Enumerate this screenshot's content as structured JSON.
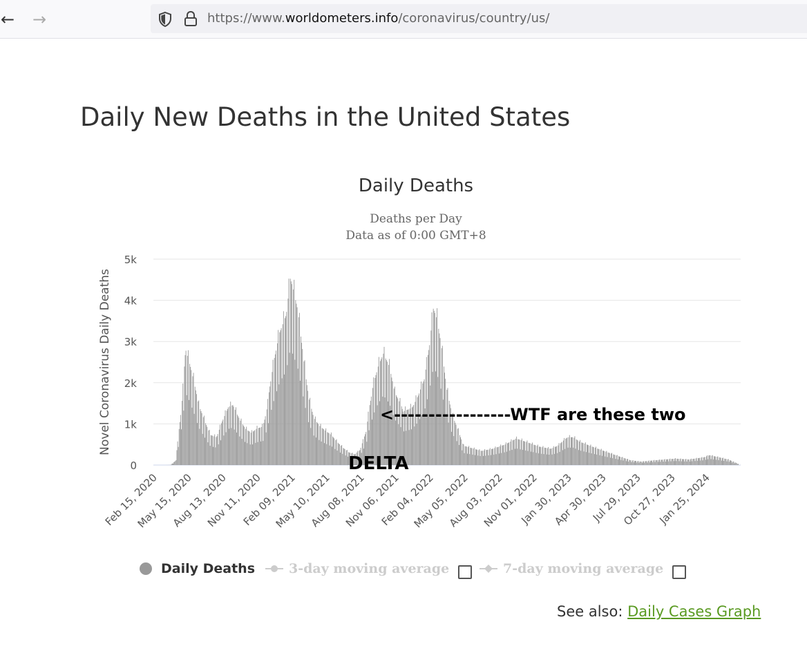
{
  "browser": {
    "back_icon": "back-arrow-icon",
    "forward_icon": "forward-arrow-icon",
    "url_prefix": "https://www.",
    "url_domain": "worldometers.info",
    "url_path": "/coronavirus/country/us/"
  },
  "page": {
    "title": "Daily New Deaths in the United States"
  },
  "annotations": {
    "arrow_text": "<-----------------WTF are these two",
    "delta_label": "DELTA"
  },
  "legend": {
    "daily_deaths": "Daily Deaths",
    "avg3": "3-day moving average",
    "avg7": "7-day moving average"
  },
  "see_also": {
    "label": "See also:",
    "link": "Daily Cases Graph"
  },
  "colors": {
    "bar": "#999999",
    "legend_inactive": "#cccccc",
    "link": "#5a9a22"
  },
  "chart_data": {
    "type": "bar",
    "title": "Daily Deaths",
    "subtitle_lines": [
      "Deaths per Day",
      "Data as of 0:00 GMT+8"
    ],
    "ylabel": "Novel Coronavirus Daily Deaths",
    "ylim": [
      0,
      5000
    ],
    "y_ticks": [
      0,
      1000,
      2000,
      3000,
      4000,
      5000
    ],
    "y_tick_labels": [
      "0",
      "1k",
      "2k",
      "3k",
      "4k",
      "5k"
    ],
    "x_tick_labels": [
      "Feb 15, 2020",
      "May 15, 2020",
      "Aug 13, 2020",
      "Nov 11, 2020",
      "Feb 09, 2021",
      "May 10, 2021",
      "Aug 08, 2021",
      "Nov 06, 2021",
      "Feb 04, 2022",
      "May 05, 2022",
      "Aug 03, 2022",
      "Nov 01, 2022",
      "Jan 30, 2023",
      "Apr 30, 2023",
      "Jul 29, 2023",
      "Oct 27, 2023",
      "Jan 25, 2024"
    ],
    "grid": true,
    "legend_position": "bottom",
    "x_range": [
      "Feb 15, 2020",
      "Apr 2024"
    ],
    "series": [
      {
        "name": "Daily Deaths",
        "x": [
          "Feb 15, 2020",
          "Mar 01, 2020",
          "Mar 15, 2020",
          "Apr 01, 2020",
          "Apr 10, 2020",
          "Apr 20, 2020",
          "May 01, 2020",
          "May 15, 2020",
          "Jun 01, 2020",
          "Jun 15, 2020",
          "Jul 01, 2020",
          "Jul 15, 2020",
          "Aug 01, 2020",
          "Aug 13, 2020",
          "Sep 01, 2020",
          "Sep 15, 2020",
          "Oct 01, 2020",
          "Oct 15, 2020",
          "Nov 01, 2020",
          "Nov 11, 2020",
          "Nov 20, 2020",
          "Dec 01, 2020",
          "Dec 15, 2020",
          "Jan 01, 2021",
          "Jan 12, 2021",
          "Jan 20, 2021",
          "Feb 01, 2021",
          "Feb 09, 2021",
          "Feb 20, 2021",
          "Mar 01, 2021",
          "Mar 15, 2021",
          "Apr 01, 2021",
          "Apr 15, 2021",
          "May 01, 2021",
          "May 10, 2021",
          "May 20, 2021",
          "Jun 01, 2021",
          "Jun 15, 2021",
          "Jul 01, 2021",
          "Jul 15, 2021",
          "Aug 01, 2021",
          "Aug 08, 2021",
          "Aug 20, 2021",
          "Sep 01, 2021",
          "Sep 15, 2021",
          "Oct 01, 2021",
          "Oct 15, 2021",
          "Nov 01, 2021",
          "Nov 06, 2021",
          "Nov 20, 2021",
          "Dec 01, 2021",
          "Dec 15, 2021",
          "Jan 01, 2022",
          "Jan 15, 2022",
          "Jan 25, 2022",
          "Feb 04, 2022",
          "Feb 15, 2022",
          "Mar 01, 2022",
          "Mar 15, 2022",
          "Apr 01, 2022",
          "Apr 15, 2022",
          "May 05, 2022",
          "Jun 01, 2022",
          "Jul 01, 2022",
          "Aug 03, 2022",
          "Sep 01, 2022",
          "Oct 01, 2022",
          "Nov 01, 2022",
          "Dec 01, 2022",
          "Dec 20, 2022",
          "Jan 01, 2023",
          "Jan 15, 2023",
          "Jan 30, 2023",
          "Feb 15, 2023",
          "Mar 15, 2023",
          "Apr 30, 2023",
          "Jun 01, 2023",
          "Jul 01, 2023",
          "Jul 29, 2023",
          "Sep 01, 2023",
          "Oct 27, 2023",
          "Dec 01, 2023",
          "Jan 10, 2024",
          "Jan 25, 2024",
          "Feb 15, 2024",
          "Mar 15, 2024",
          "Apr 10, 2024"
        ],
        "values": [
          0,
          2,
          100,
          1500,
          2700,
          2400,
          2000,
          1400,
          1000,
          700,
          650,
          1000,
          1350,
          1400,
          1050,
          850,
          750,
          850,
          900,
          1300,
          1900,
          2500,
          3100,
          3500,
          4350,
          4100,
          3600,
          3000,
          2200,
          1600,
          1100,
          900,
          800,
          700,
          600,
          500,
          400,
          300,
          250,
          350,
          800,
          1300,
          1900,
          2300,
          2600,
          2300,
          1700,
          1400,
          1250,
          1300,
          1350,
          1600,
          2000,
          2800,
          3650,
          3400,
          2800,
          1800,
          1200,
          800,
          450,
          400,
          330,
          380,
          480,
          620,
          530,
          430,
          380,
          450,
          550,
          650,
          650,
          550,
          450,
          300,
          200,
          110,
          80,
          110,
          150,
          130,
          180,
          230,
          190,
          130,
          30
        ]
      }
    ]
  }
}
